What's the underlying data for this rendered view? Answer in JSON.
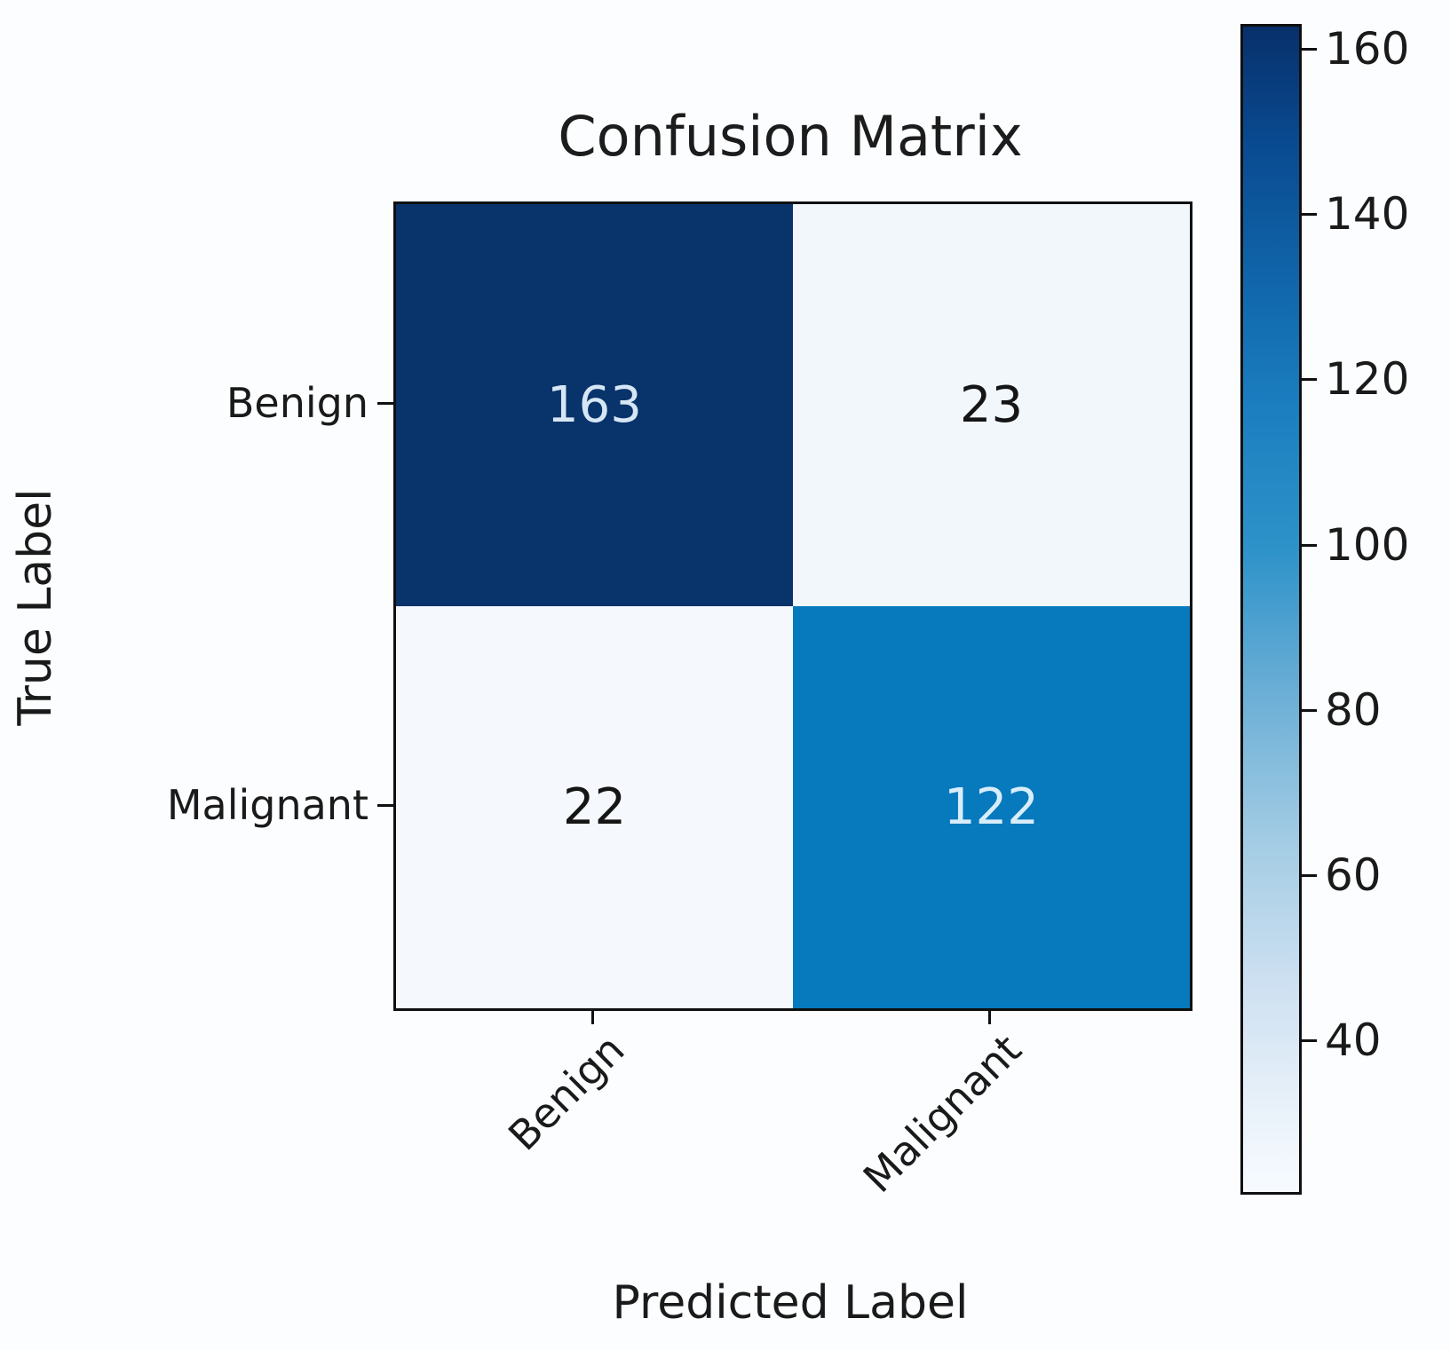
{
  "chart_data": {
    "type": "heatmap",
    "title": "Confusion Matrix",
    "xlabel": "Predicted Label",
    "ylabel": "True Label",
    "x_tick_labels": [
      "Benign",
      "Malignant"
    ],
    "y_tick_labels": [
      "Benign",
      "Malignant"
    ],
    "rows": [
      {
        "true_label": "Benign",
        "values": [
          163,
          23
        ]
      },
      {
        "true_label": "Malignant",
        "values": [
          22,
          122
        ]
      }
    ],
    "colormap": "Blues",
    "vmin": 22,
    "vmax": 163,
    "colorbar_ticks": [
      160,
      140,
      120,
      100,
      80,
      60,
      40
    ],
    "cell_colors": [
      [
        "#08336b",
        "#f2f7fc"
      ],
      [
        "#f5f9fd",
        "#0779bd"
      ]
    ],
    "cell_text_colors": [
      [
        "#d6e6f4",
        "#151515"
      ],
      [
        "#151515",
        "#d8edfa"
      ]
    ],
    "colorbar_gradient_stops": [
      "#08306b 0%",
      "#094a90 10%",
      "#1166ab 22%",
      "#1b7fc0 33%",
      "#2e93c9 45%",
      "#6aaed6 57%",
      "#a3cce4 70%",
      "#cde0f1 82%",
      "#e7f0f9 92%",
      "#f7fbff 100%"
    ],
    "axis_color": "#101010",
    "grid": false,
    "legend_position": "colorbar-right"
  }
}
